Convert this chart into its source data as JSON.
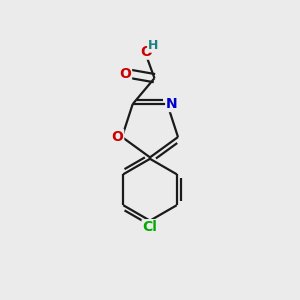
{
  "bg_color": "#ebebeb",
  "atom_colors": {
    "O": "#cc0000",
    "N": "#0000cc",
    "Cl": "#00aa00",
    "C": "#1a1a1a",
    "H": "#1a8080"
  },
  "bond_color": "#1a1a1a",
  "bond_width": 1.6,
  "font_size_atoms": 10,
  "fig_size": [
    3.0,
    3.0
  ],
  "dpi": 100
}
